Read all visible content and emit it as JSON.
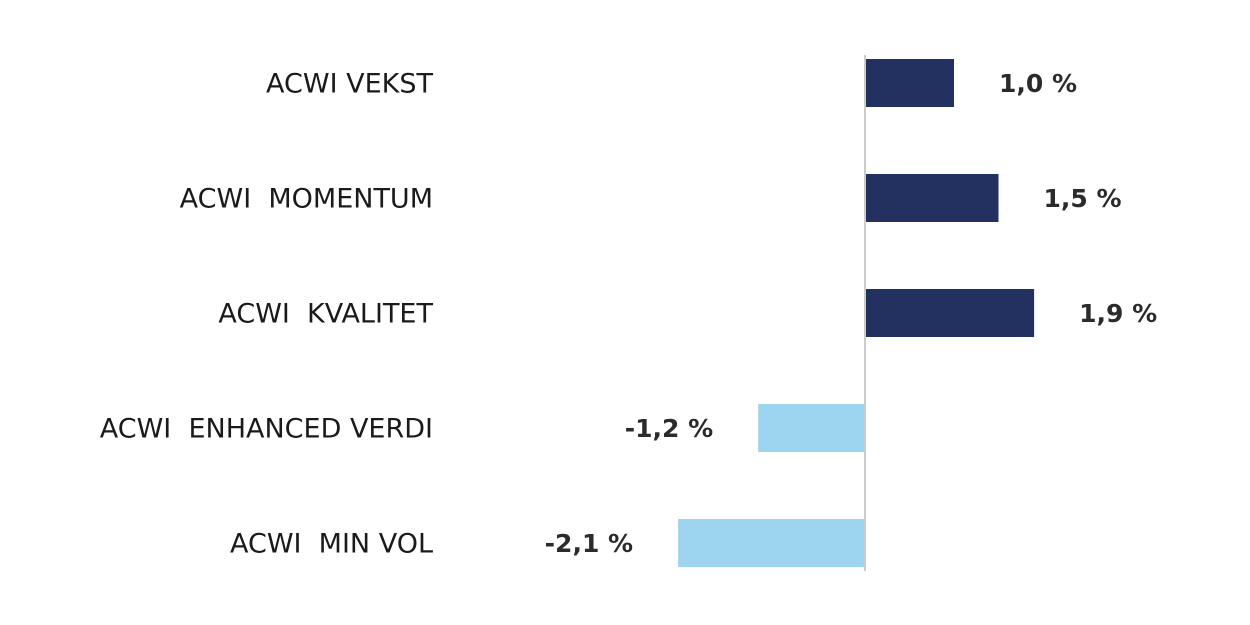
{
  "chart_data": {
    "type": "bar",
    "orientation": "horizontal",
    "categories": [
      "ACWI VEKST",
      "ACWI  MOMENTUM",
      "ACWI  KVALITET",
      "ACWI  ENHANCED VERDI",
      "ACWI  MIN VOL"
    ],
    "values": [
      1.0,
      1.5,
      1.9,
      -1.2,
      -2.1
    ],
    "value_labels": [
      "1,0 %",
      "1,5 %",
      "1,9 %",
      "-1,2 %",
      "-2,1 %"
    ],
    "colors": [
      "#22315f",
      "#22315f",
      "#22315f",
      "#9dd4ef",
      "#9dd4ef"
    ]
  }
}
